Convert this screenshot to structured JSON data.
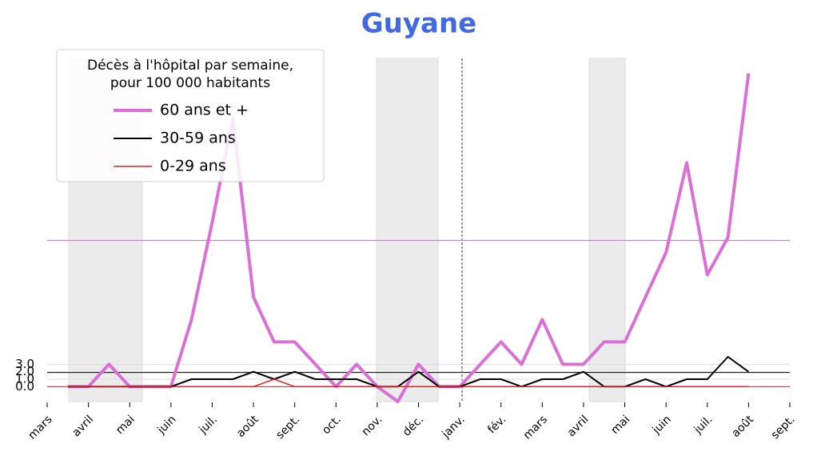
{
  "chart_data": {
    "type": "line",
    "title": "Guyane",
    "legend_title": [
      "Décès à l'hôpital par semaine,",
      "pour 100 000 habitants"
    ],
    "legend_position": "upper left",
    "categories": [
      "mars",
      null,
      "avril",
      null,
      "mai",
      null,
      "juin",
      null,
      "juil.",
      null,
      "août",
      null,
      "sept.",
      null,
      "oct.",
      null,
      "nov.",
      null,
      "déc.",
      null,
      "janv.",
      null,
      "fév.",
      null,
      "mars",
      null,
      "avril",
      null,
      "mai",
      null,
      "juin",
      null,
      "juil.",
      null,
      "août",
      null,
      "sept."
    ],
    "series": [
      {
        "name": "60 ans et +",
        "color": "#da70d6",
        "width": 4,
        "values": [
          null,
          0,
          0,
          3,
          0,
          0,
          0,
          9,
          22,
          36,
          12,
          6,
          6,
          3,
          0,
          3,
          0,
          -2,
          3,
          0,
          0,
          3,
          6,
          3,
          9,
          3,
          3,
          6,
          6,
          12,
          18,
          30,
          15,
          20,
          42,
          null,
          null
        ]
      },
      {
        "name": "30-59 ans",
        "color": "#000000",
        "width": 2,
        "values": [
          null,
          0,
          0,
          0,
          0,
          0,
          0,
          1,
          1,
          1,
          2,
          1,
          2,
          1,
          1,
          1,
          0,
          0,
          2,
          0,
          0,
          1,
          1,
          0,
          1,
          1,
          2,
          0,
          0,
          1,
          0,
          1,
          1,
          4,
          2,
          null,
          null
        ]
      },
      {
        "name": "0-29 ans",
        "color": "#d62728",
        "width": 1.5,
        "values": [
          null,
          0,
          0,
          0,
          0,
          0,
          0,
          0,
          0,
          0,
          0,
          1,
          0,
          0,
          0,
          0,
          0,
          0,
          0,
          0,
          0,
          0,
          0,
          0,
          0,
          0,
          0,
          0,
          0,
          0,
          0,
          0,
          0,
          0,
          0,
          null,
          null
        ]
      }
    ],
    "hlines": [
      {
        "value": 19.6,
        "color": "#da70d6"
      },
      {
        "value": 1.9,
        "color": "#000000"
      },
      {
        "value": 0,
        "color": "#d62728"
      }
    ],
    "ylim": [
      -2,
      44
    ],
    "yticks": [
      {
        "value": 0,
        "label": "0.0"
      },
      {
        "value": 1,
        "label": "1.0"
      },
      {
        "value": 2,
        "label": "2.0"
      },
      {
        "value": 3,
        "label": "3.0"
      }
    ],
    "grid": true
  }
}
